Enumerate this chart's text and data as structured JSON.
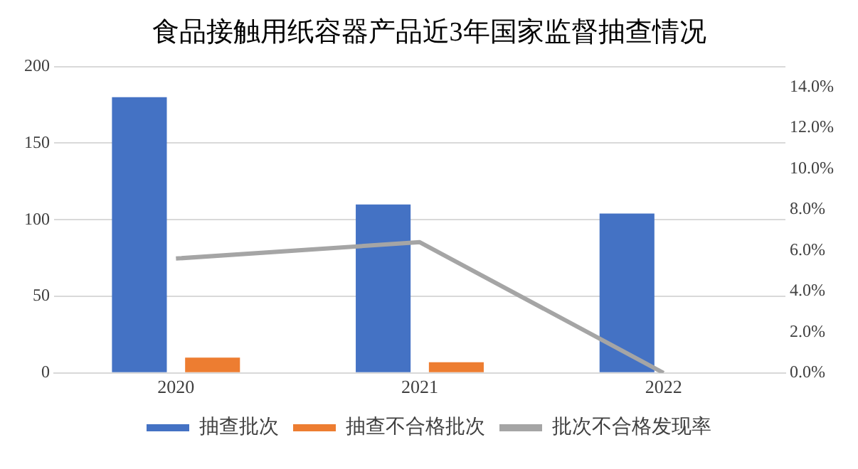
{
  "chart_data": {
    "type": "bar",
    "title": "食品接触用纸容器产品近3年国家监督抽查情况",
    "categories": [
      "2020",
      "2021",
      "2022"
    ],
    "series": [
      {
        "name": "抽查批次",
        "color": "#4472c4",
        "values": [
          180,
          110,
          104
        ]
      },
      {
        "name": "抽查不合格批次",
        "color": "#ed7d31",
        "values": [
          10,
          7,
          0
        ]
      },
      {
        "name": "批次不合格发现率",
        "color": "#a5a5a5",
        "type": "line",
        "axis": "y2",
        "values": [
          5.6,
          6.4,
          0
        ]
      }
    ],
    "ylim": [
      0,
      200
    ],
    "yticks": [
      0,
      50,
      100,
      150,
      200
    ],
    "y2lim": [
      0,
      15
    ],
    "y2ticks": [
      {
        "value": 0,
        "label": "0.0%"
      },
      {
        "value": 2,
        "label": "2.0%"
      },
      {
        "value": 4,
        "label": "4.0%"
      },
      {
        "value": 6,
        "label": "6.0%"
      },
      {
        "value": 8,
        "label": "8.0%"
      },
      {
        "value": 10,
        "label": "10.0%"
      },
      {
        "value": 12,
        "label": "12.0%"
      },
      {
        "value": 14,
        "label": "14.0%"
      }
    ],
    "grid": "y",
    "legend": "bottom",
    "marker": "none"
  }
}
